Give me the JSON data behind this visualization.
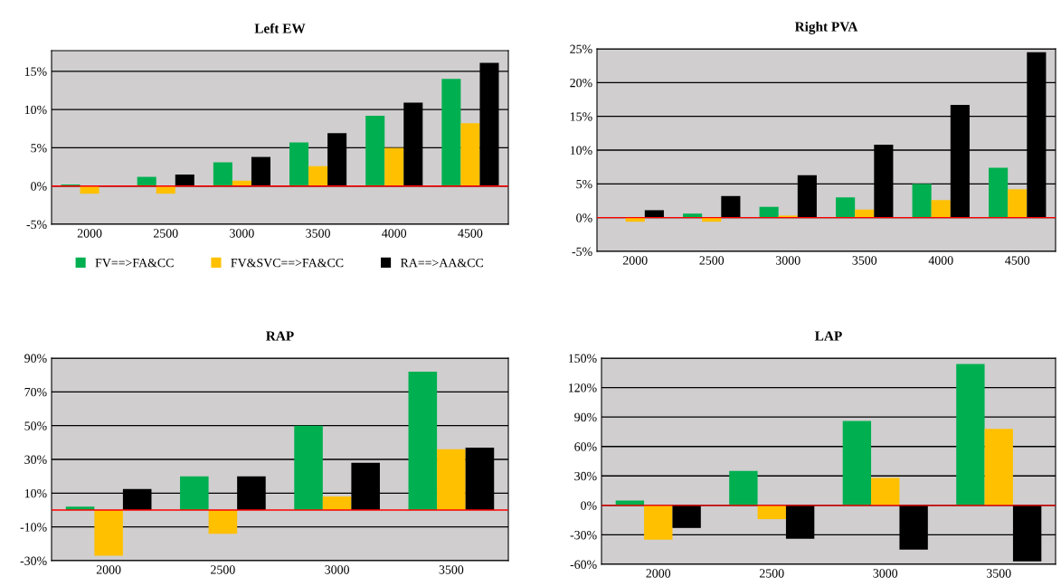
{
  "chart_data": [
    {
      "type": "bar",
      "title": "Left EW",
      "categories": [
        "2000",
        "2500",
        "3000",
        "3500",
        "4000",
        "4500"
      ],
      "ylim": [
        -5,
        17.7
      ],
      "yticks": [
        {
          "value": -5,
          "label": "-5%"
        },
        {
          "value": 0,
          "label": "0%"
        },
        {
          "value": 5,
          "label": "5%"
        },
        {
          "value": 10,
          "label": "10%"
        },
        {
          "value": 15,
          "label": "15%"
        }
      ],
      "grid": "y",
      "legend": "bottom",
      "series": [
        {
          "name": "FV==>FA&CC",
          "color": "#00b050",
          "values": [
            0.2,
            1.2,
            3.1,
            5.7,
            9.2,
            14.0
          ]
        },
        {
          "name": "FV&SVC==>FA&CC",
          "color": "#ffc000",
          "values": [
            -1.0,
            -1.0,
            0.7,
            2.6,
            5.0,
            8.2
          ]
        },
        {
          "name": "RA==>AA&CC",
          "color": "#000000",
          "values": [
            null,
            1.5,
            3.8,
            6.9,
            10.9,
            16.1
          ]
        }
      ],
      "ref_lines": [
        {
          "axis": "y",
          "value": 0,
          "color": "#ff0000"
        }
      ]
    },
    {
      "type": "bar",
      "title": "Right PVA",
      "categories": [
        "2000",
        "2500",
        "3000",
        "3500",
        "4000",
        "4500"
      ],
      "ylim": [
        -5,
        25
      ],
      "yticks": [
        {
          "value": -5,
          "label": "-5%"
        },
        {
          "value": 0,
          "label": "0%"
        },
        {
          "value": 5,
          "label": "5%"
        },
        {
          "value": 10,
          "label": "10%"
        },
        {
          "value": 15,
          "label": "15%"
        },
        {
          "value": 20,
          "label": "20%"
        },
        {
          "value": 25,
          "label": "25%"
        }
      ],
      "grid": "y",
      "series": [
        {
          "color": "#00b050",
          "values": [
            null,
            0.6,
            1.6,
            3.0,
            5.0,
            7.4
          ]
        },
        {
          "color": "#ffc000",
          "values": [
            -0.6,
            -0.6,
            0.3,
            1.2,
            2.6,
            4.2
          ]
        },
        {
          "color": "#000000",
          "values": [
            1.1,
            3.2,
            6.3,
            10.8,
            16.7,
            24.5
          ]
        }
      ],
      "ref_lines": [
        {
          "axis": "y",
          "value": 0,
          "color": "#ff0000"
        }
      ]
    },
    {
      "type": "bar",
      "title": "RAP",
      "categories": [
        "2000",
        "2500",
        "3000",
        "3500"
      ],
      "ylim": [
        -30,
        90
      ],
      "yticks": [
        {
          "value": -30,
          "label": "-30%"
        },
        {
          "value": -10,
          "label": "-10%"
        },
        {
          "value": 10,
          "label": "10%"
        },
        {
          "value": 30,
          "label": "30%"
        },
        {
          "value": 50,
          "label": "50%"
        },
        {
          "value": 70,
          "label": "70%"
        },
        {
          "value": 90,
          "label": "90%"
        }
      ],
      "grid": "y",
      "series": [
        {
          "color": "#00b050",
          "values": [
            2,
            20,
            50,
            82
          ]
        },
        {
          "color": "#ffc000",
          "values": [
            -27,
            -14,
            8,
            36
          ]
        },
        {
          "color": "#000000",
          "values": [
            12.5,
            20,
            28,
            37
          ]
        }
      ],
      "ref_lines": [
        {
          "axis": "y",
          "value": 0,
          "color": "#ff0000"
        }
      ]
    },
    {
      "type": "bar",
      "title": "LAP",
      "categories": [
        "2000",
        "2500",
        "3000",
        "3500"
      ],
      "ylim": [
        -60,
        150
      ],
      "yticks": [
        {
          "value": -60,
          "label": "-60%"
        },
        {
          "value": -30,
          "label": "-30%"
        },
        {
          "value": 0,
          "label": "0%"
        },
        {
          "value": 30,
          "label": "30%"
        },
        {
          "value": 60,
          "label": "60%"
        },
        {
          "value": 90,
          "label": "90%"
        },
        {
          "value": 120,
          "label": "120%"
        },
        {
          "value": 150,
          "label": "150%"
        }
      ],
      "grid": "y",
      "series": [
        {
          "color": "#00b050",
          "values": [
            5,
            35,
            86,
            144
          ]
        },
        {
          "color": "#ffc000",
          "values": [
            -35,
            -14,
            28,
            78
          ]
        },
        {
          "color": "#000000",
          "values": [
            -23,
            -34,
            -45,
            -57
          ]
        }
      ],
      "ref_lines": [
        {
          "axis": "y",
          "value": 0,
          "color": "#ff0000"
        }
      ]
    }
  ]
}
